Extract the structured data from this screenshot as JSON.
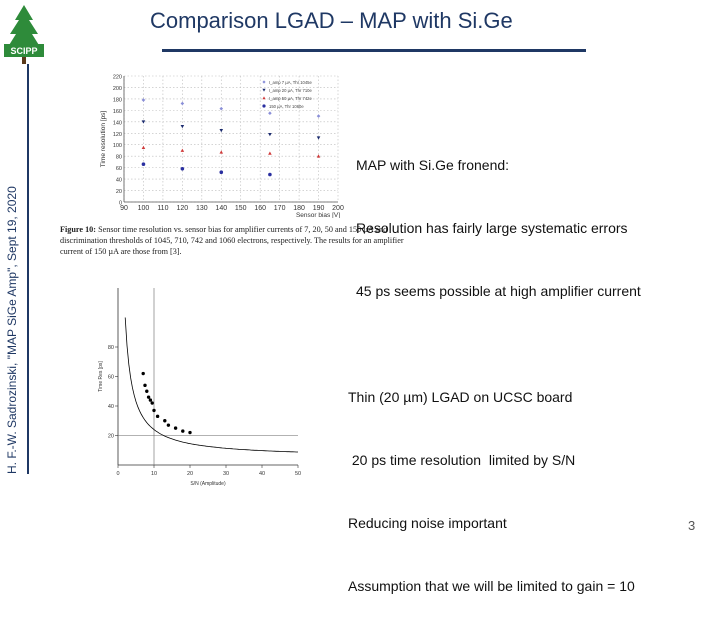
{
  "logo": {
    "text": "SCIPP"
  },
  "sidebar": {
    "vertical_text": "H. F.-W. Sadrozinski, \"MAP SiGe Amp\", Sept 19, 2020"
  },
  "slide": {
    "title": "Comparison LGAD – MAP with Si.Ge",
    "page_number": "3"
  },
  "notes": {
    "block1": [
      "MAP with Si.Ge fronend:",
      "Resolution has fairly large systematic errors",
      "45 ps seems possible at high amplifier current"
    ],
    "block2": [
      "Thin (20 µm) LGAD on UCSC board",
      " 20 ps time resolution  limited by S/N",
      "Reducing noise important",
      "Assumption that we will be limited to gain = 10"
    ]
  },
  "figure_caption": {
    "label": "Figure 10:",
    "text": " Sensor time resolution vs. sensor bias for amplifier currents of 7, 20, 50 and 150 µA and discrimination thresholds of 1045, 710, 742 and 1060 electrons, respectively.  The results for an amplifier current of 150 µA are those from [3]."
  },
  "chart_data": [
    {
      "type": "scatter",
      "title": "",
      "xlabel": "Sensor bias [V]",
      "ylabel": "Time resolution [ps]",
      "xlim": [
        90,
        200
      ],
      "ylim": [
        0,
        220
      ],
      "x_ticks": [
        "90",
        "100",
        "110",
        "120",
        "130",
        "140",
        "150",
        "160",
        "170",
        "180",
        "190",
        "200"
      ],
      "y_ticks": [
        "0",
        "20",
        "40",
        "60",
        "80",
        "100",
        "120",
        "140",
        "160",
        "180",
        "200",
        "220"
      ],
      "grid": true,
      "legend_position": "top-right",
      "series": [
        {
          "name": "I_amp 7 µA, Thr 1045e",
          "color": "#8a8fd8",
          "marker": "diamond",
          "x": [
            100,
            120,
            140,
            165,
            190
          ],
          "y": [
            178,
            172,
            163,
            155,
            150
          ]
        },
        {
          "name": "I_amp 20 µA, Thr 710e",
          "color": "#1a2a6e",
          "marker": "triangle-down",
          "x": [
            100,
            120,
            140,
            165,
            190
          ],
          "y": [
            140,
            132,
            125,
            118,
            112
          ]
        },
        {
          "name": "I_amp 50 µA, Thr 742e",
          "color": "#d03a3a",
          "marker": "triangle-up",
          "x": [
            100,
            120,
            140,
            165,
            190
          ],
          "y": [
            95,
            90,
            87,
            85,
            80
          ]
        },
        {
          "name": "150 µA, Thr 1060e",
          "color": "#2a2fa0",
          "marker": "circle",
          "x": [
            100,
            120,
            140,
            165
          ],
          "y": [
            66,
            58,
            52,
            48
          ]
        }
      ]
    },
    {
      "type": "scatter",
      "title": "",
      "xlabel": "S/N (Amplitude)",
      "ylabel": "Time Res [ps]",
      "xlim": [
        0,
        50
      ],
      "ylim": [
        0,
        120
      ],
      "x_ticks": [
        "0",
        "10",
        "20",
        "30",
        "40",
        "50"
      ],
      "y_ticks": [
        "20",
        "40",
        "60",
        "80"
      ],
      "grid": false,
      "reference_lines": {
        "x": 10,
        "y": 20
      },
      "fit_curve": {
        "form": "a/x + c",
        "a": 190,
        "c": 5
      },
      "series": [
        {
          "name": "",
          "color": "#000000",
          "marker": "circle",
          "x": [
            7,
            7.5,
            8,
            8.5,
            9,
            9.5,
            10,
            11,
            13,
            14,
            16,
            18,
            20
          ],
          "y": [
            62,
            54,
            50,
            46,
            44,
            42,
            37,
            33,
            30,
            27,
            25,
            23,
            22
          ]
        }
      ]
    }
  ]
}
